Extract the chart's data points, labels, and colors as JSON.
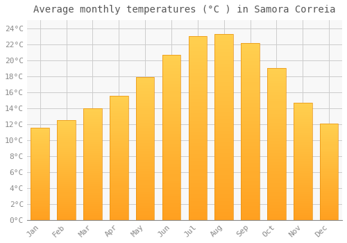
{
  "title": "Average monthly temperatures (°C ) in Samora Correia",
  "months": [
    "Jan",
    "Feb",
    "Mar",
    "Apr",
    "May",
    "Jun",
    "Jul",
    "Aug",
    "Sep",
    "Oct",
    "Nov",
    "Dec"
  ],
  "temperatures": [
    11.5,
    12.5,
    14.0,
    15.5,
    17.9,
    20.7,
    23.0,
    23.3,
    22.1,
    19.0,
    14.7,
    12.1
  ],
  "bar_color_top": "#FFC84A",
  "bar_color_bottom": "#FFA020",
  "bar_edge_color": "#E89010",
  "background_color": "#FFFFFF",
  "plot_bg_color": "#F8F8F8",
  "grid_color": "#CCCCCC",
  "ylim": [
    0,
    25
  ],
  "ytick_step": 2,
  "title_fontsize": 10,
  "tick_fontsize": 8,
  "font_color": "#888888",
  "title_color": "#555555"
}
